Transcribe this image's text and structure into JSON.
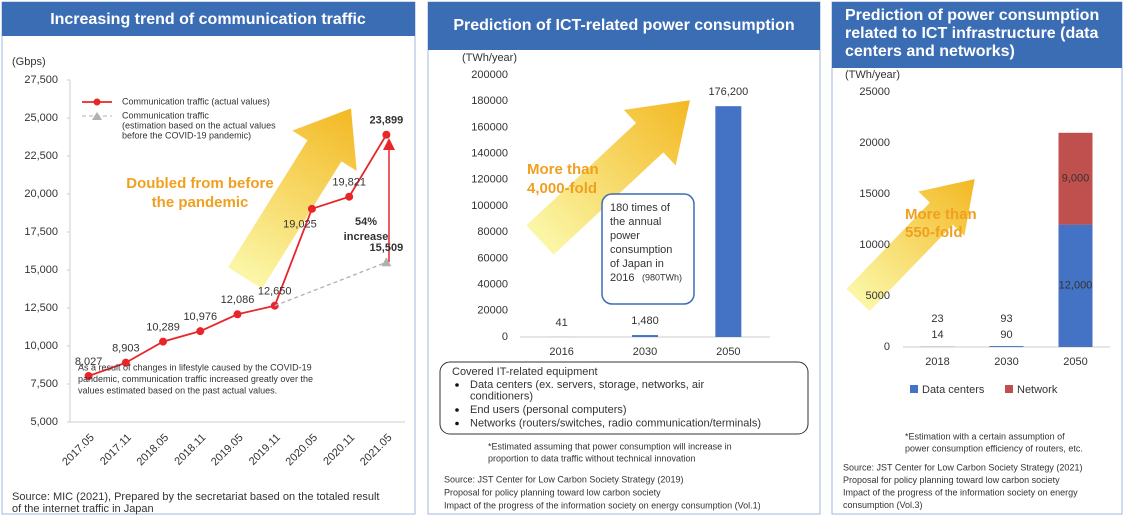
{
  "chart_data": [
    {
      "type": "line",
      "title": "Increasing trend of communication traffic",
      "y_label": "(Gbps)",
      "categories": [
        "2017.05",
        "2017.11",
        "2018.05",
        "2018.11",
        "2019.05",
        "2019.11",
        "2020.05",
        "2020.11",
        "2021.05"
      ],
      "series": [
        {
          "name": "Communication traffic (actual values)",
          "color": "#e8262a",
          "marker": "circle",
          "dashed": false,
          "values": [
            8027,
            8903,
            10289,
            10976,
            12086,
            12650,
            19025,
            19821,
            23899
          ],
          "value_labels": [
            "8,027",
            "8,903",
            "10,289",
            "10,976",
            "12,086",
            "12,650",
            "19,025",
            "19,821",
            "23,899"
          ]
        },
        {
          "name": "Communication traffic",
          "description": [
            "(estimation based on the actual values",
            "before the COVID-19 pandemic)"
          ],
          "color": "#b0b0b0",
          "marker": "triangle",
          "dashed": true,
          "values": [
            null,
            null,
            null,
            null,
            null,
            12650,
            13600,
            14550,
            15509
          ],
          "value_labels": [
            null,
            null,
            null,
            null,
            null,
            null,
            null,
            null,
            "15,509"
          ]
        }
      ],
      "ylim": [
        5000,
        27500
      ],
      "yticks": [
        {
          "value": 5000,
          "label": "5,000"
        },
        {
          "value": 7500,
          "label": "7,500"
        },
        {
          "value": 10000,
          "label": "10,000"
        },
        {
          "value": 12500,
          "label": "12,500"
        },
        {
          "value": 15000,
          "label": "15,000"
        },
        {
          "value": 17500,
          "label": "17,500"
        },
        {
          "value": 20000,
          "label": "20,000"
        },
        {
          "value": 22500,
          "label": "22,500"
        },
        {
          "value": 25000,
          "label": "25,000"
        },
        {
          "value": 27500,
          "label": "27,500"
        }
      ],
      "grid": false,
      "legend": "top-left",
      "arrow_text": [
        "Doubled from before",
        "the pandemic"
      ],
      "increase_text": [
        "54%",
        "increase"
      ],
      "notes": [
        "As a result of changes in lifestyle caused by the COVID-19",
        "pandemic, communication traffic increased greatly over the",
        "values estimated based on the past actual values."
      ],
      "source": [
        "Source: MIC (2021), Prepared by the secretariat based on the totaled result",
        "of the internet traffic in Japan"
      ]
    },
    {
      "type": "bar",
      "title": "Prediction of ICT-related power consumption",
      "y_label": "(TWh/year)",
      "categories": [
        "2016",
        "2030",
        "2050"
      ],
      "values": [
        41,
        1480,
        176200
      ],
      "value_labels": [
        "41",
        "1,480",
        "176,200"
      ],
      "color": "#4472c4",
      "ylim": [
        0,
        200000
      ],
      "yticks": [
        0,
        20000,
        40000,
        60000,
        80000,
        100000,
        120000,
        140000,
        160000,
        180000,
        200000
      ],
      "grid": false,
      "arrow_text": [
        "More than",
        "4,000-fold"
      ],
      "callout": [
        "180 times of",
        "the annual",
        "power",
        "consumption",
        "of Japan in",
        "2016"
      ],
      "callout_suffix": "(980TWh)",
      "box": {
        "title": "Covered IT-related equipment",
        "items": [
          [
            "Data centers (ex. servers, storage, networks, air",
            "conditioners)"
          ],
          [
            "End users (personal computers)"
          ],
          [
            "Networks (routers/switches, radio communication/terminals)"
          ]
        ]
      },
      "notes": [
        "*Estimated assuming that power consumption will increase in",
        "proportion to data traffic without technical innovation"
      ],
      "source": [
        "Source: JST Center for Low Carbon Society Strategy (2019)",
        "Proposal for policy planning toward low carbon society",
        "Impact of the progress of the information society on energy consumption (Vol.1)"
      ]
    },
    {
      "type": "stacked_bar",
      "title": [
        "Prediction of power consumption",
        "related to ICT infrastructure (data",
        "centers and networks)"
      ],
      "y_label": "(TWh/year)",
      "categories": [
        "2018",
        "2030",
        "2050"
      ],
      "series": [
        {
          "name": "Data centers",
          "color": "#4472c4",
          "values": [
            14,
            90,
            12000
          ],
          "value_labels": [
            "14",
            "90",
            "12,000"
          ]
        },
        {
          "name": "Network",
          "color": "#c0504d",
          "values": [
            9,
            3,
            9000
          ],
          "value_labels": [
            null,
            null,
            "9,000"
          ]
        }
      ],
      "totals": [
        23,
        93,
        null
      ],
      "ylim": [
        0,
        25000
      ],
      "yticks": [
        0,
        5000,
        10000,
        15000,
        20000,
        25000
      ],
      "grid": false,
      "legend": "bottom",
      "arrow_text": [
        "More than",
        "550-fold"
      ],
      "notes": [
        "*Estimation with a certain assumption of",
        "power consumption efficiency of routers, etc."
      ],
      "source": [
        "Source: JST Center for Low Carbon Society Strategy (2021)",
        "Proposal for policy planning toward low carbon society",
        "Impact of the progress of the information society on energy",
        "consumption (Vol.3)"
      ]
    }
  ]
}
